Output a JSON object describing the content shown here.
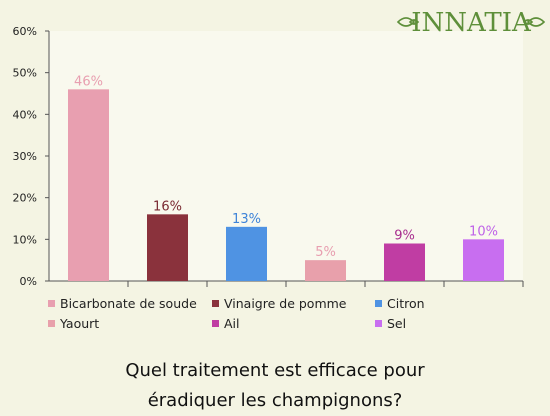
{
  "logo": {
    "text": "INNATIA",
    "color": "#5e8f3a"
  },
  "chart_data": {
    "type": "bar",
    "categories": [
      "Bicarbonate de soude",
      "Vinaigre de pomme",
      "Citron",
      "Yaourt",
      "Ail",
      "Sel"
    ],
    "values": [
      46,
      16,
      13,
      5,
      9,
      10
    ],
    "value_labels": [
      "46%",
      "16%",
      "13%",
      "5%",
      "9%",
      "10%"
    ],
    "colors": [
      "#e89fb0",
      "#8a323c",
      "#4f93e3",
      "#e8a0ab",
      "#c03da3",
      "#c86ef0"
    ],
    "label_colors": [
      "#e89fb0",
      "#7a2a32",
      "#3f84d8",
      "#e89fb0",
      "#a82e8e",
      "#bf62e8"
    ],
    "ylim": [
      0,
      60
    ],
    "yticks": [
      0,
      10,
      20,
      30,
      40,
      50,
      60
    ],
    "ytick_labels": [
      "0%",
      "10%",
      "20%",
      "30%",
      "40%",
      "50%",
      "60%"
    ],
    "grid": false,
    "legend_position": "bottom",
    "title": "Quel traitement est efficace pour éradiquer les champignons?"
  },
  "question": {
    "line1": "Quel traitement est efficace pour",
    "line2": "éradiquer les champignons?"
  }
}
